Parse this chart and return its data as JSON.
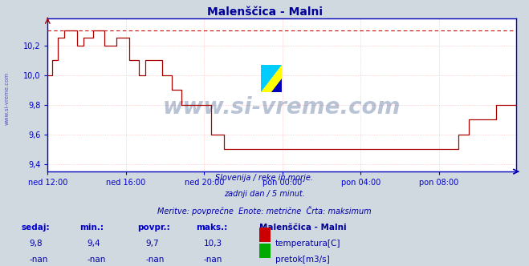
{
  "title": "Malenščica - Malni",
  "title_color": "#000099",
  "bg_color": "#d0d8e0",
  "plot_bg_color": "#ffffff",
  "grid_color": "#ffb0b0",
  "grid_minor_color": "#e8e8e8",
  "axis_color": "#0000bb",
  "line_color": "#aa0000",
  "dashed_line_color": "#cc0000",
  "x_labels": [
    "ned 12:00",
    "ned 16:00",
    "ned 20:00",
    "pon 00:00",
    "pon 04:00",
    "pon 08:00"
  ],
  "x_label_color": "#0000cc",
  "y_label_color": "#0000cc",
  "ylim": [
    9.35,
    10.38
  ],
  "yticks": [
    9.4,
    9.6,
    9.8,
    10.0,
    10.2
  ],
  "footnote_line1": "Slovenija / reke in morje.",
  "footnote_line2": "zadnji dan / 5 minut.",
  "footnote_line3": "Meritve: povprečne  Enote: metrične  Črta: maksimum",
  "footnote_color": "#0000aa",
  "watermark": "www.si-vreme.com",
  "watermark_color": "#1a3a7a",
  "sidebar_text": "www.si-vreme.com",
  "sidebar_color": "#0000aa",
  "table_headers": [
    "sedaj:",
    "min.:",
    "povpr.:",
    "maks.:"
  ],
  "table_values_temp": [
    "9,8",
    "9,4",
    "9,7",
    "10,3"
  ],
  "table_values_pretok": [
    "-nan",
    "-nan",
    "-nan",
    "-nan"
  ],
  "table_header_color": "#0000cc",
  "table_value_color": "#0000aa",
  "legend_title": "Malenščica - Malni",
  "legend_title_color": "#000099",
  "legend_temp_color": "#cc0000",
  "legend_pretok_color": "#00aa00",
  "max_line_y": 10.3,
  "n_points": 288,
  "x_tick_positions": [
    0,
    48,
    96,
    144,
    192,
    240
  ]
}
